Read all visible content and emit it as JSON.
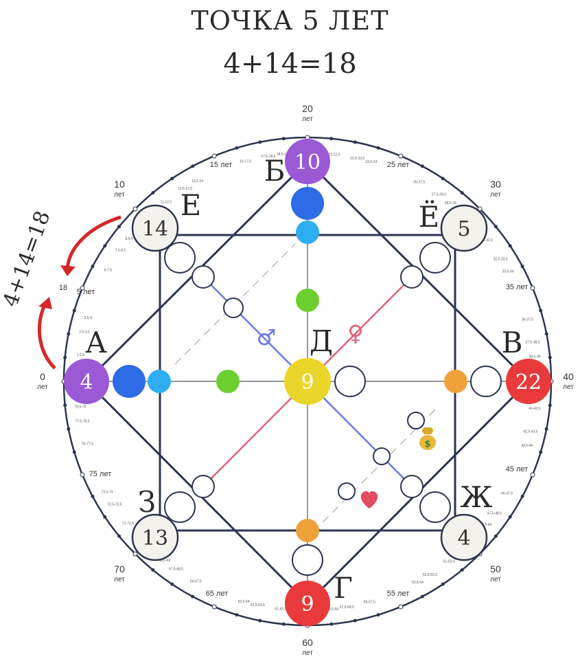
{
  "title": "ТОЧКА 5 ЛЕТ",
  "subtitle": "4+14=18",
  "side_formula": "4+14=18",
  "point_18": "18",
  "ages": {
    "a0": "0",
    "a10": "10",
    "a20": "20",
    "a30": "30",
    "a40": "40",
    "a50": "50",
    "a60": "60",
    "a70": "70",
    "unit": "лет",
    "l5": "5 лет",
    "l15": "15 лет",
    "l25": "25 лет",
    "l35": "35 лет",
    "l45": "45 лет",
    "l55": "55 лет",
    "l65": "65 лет",
    "l75": "75 лет"
  },
  "ticks": [
    "1-2,5",
    "2,5-3,5",
    "3,5-4",
    "6-7,5",
    "7,5-8,5",
    "8,5-9",
    "11-12,5",
    "12,5-13,5",
    "13,5-14",
    "16-17,5",
    "17,5-18,5",
    "18,5-19",
    "21-22,5",
    "22,5-23,5",
    "23,5-24",
    "26-27,5",
    "27,5-28,5",
    "28,5-29",
    "31-32,5",
    "32,5-33,5",
    "33,5-34",
    "36-37,5",
    "37,5-38,5",
    "38,5-39",
    "41-42,5",
    "42,5-43,5",
    "43,5-44",
    "46-47,5",
    "47,5-48,5",
    "48,5-49",
    "51-52,5",
    "52,5-53,5",
    "53,5-54",
    "56-57,5",
    "57,5-58,5",
    "58,5-59",
    "61-62,5",
    "62,5-63,5",
    "63,5-64",
    "66-67,5",
    "67,5-68,5",
    "68,5-69",
    "71-72,5",
    "72,5-73,5",
    "73,5-74",
    "76-77,5",
    "77,5-78,5",
    "78,5-79"
  ],
  "points": {
    "a": {
      "letter": "А",
      "value": "4",
      "color": "#9b59d6"
    },
    "b": {
      "letter": "Б",
      "value": "10",
      "color": "#9b59d6"
    },
    "v": {
      "letter": "В",
      "value": "22",
      "color": "#e83a3a"
    },
    "g": {
      "letter": "Г",
      "value": "9",
      "color": "#e83a3a"
    },
    "d": {
      "letter": "Д",
      "value": "9",
      "color": "#ead62a"
    },
    "e": {
      "letter": "Е",
      "value": "14"
    },
    "yo": {
      "letter": "Ё",
      "value": "5"
    },
    "zh": {
      "letter": "Ж",
      "value": "4"
    },
    "z": {
      "letter": "З",
      "value": "13"
    }
  },
  "colors": {
    "line": "#2b3550",
    "blue": "#2e6be6",
    "cyan": "#2eaef0",
    "green": "#6ccf2e",
    "orange": "#f0a23a",
    "male": "#6a7ae0",
    "female": "#e0627a",
    "arrow": "#d62828",
    "ring": "#f4f2ec"
  },
  "icons": {
    "male": "male-symbol-icon",
    "female": "female-symbol-icon",
    "money": "money-bag-icon",
    "heart": "heart-icon"
  }
}
